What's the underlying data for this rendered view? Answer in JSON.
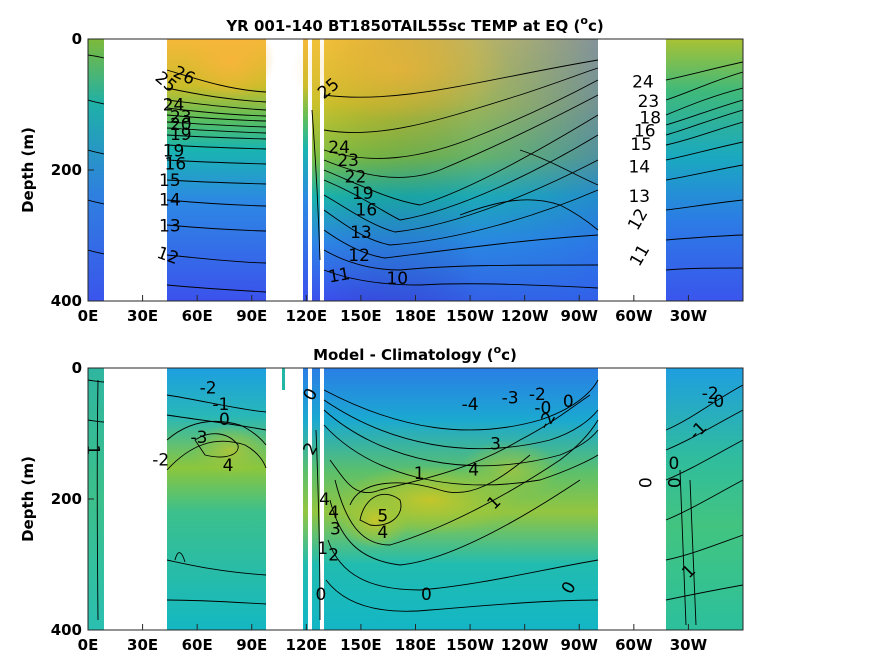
{
  "chart_data": [
    {
      "type": "heatmap",
      "title": "YR 001-140 BT1850TAIL55sc TEMP at EQ (°c)",
      "title_main": "YR 001-140 BT1850TAIL55sc TEMP at EQ (",
      "title_sup": "o",
      "title_end": "c)",
      "xlabel": "",
      "ylabel": "Depth (m)",
      "xticks": [
        "0E",
        "30E",
        "60E",
        "90E",
        "120E",
        "150E",
        "180E",
        "150W",
        "120W",
        "90W",
        "60W",
        "30W"
      ],
      "xtick_values": [
        0,
        30,
        60,
        90,
        120,
        150,
        180,
        210,
        240,
        270,
        300,
        330
      ],
      "yticks": [
        "0",
        "200",
        "400"
      ],
      "ytick_values": [
        0,
        200,
        400
      ],
      "xlim": [
        0,
        360
      ],
      "ylim": [
        400,
        0
      ],
      "land_gaps_lon": [
        [
          8,
          42
        ],
        [
          98,
          118
        ],
        [
          122,
          125
        ],
        [
          270,
          302
        ]
      ],
      "contour_labels": [
        {
          "text": "26",
          "lon": 53,
          "depth": 55,
          "rot": 25
        },
        {
          "text": "25",
          "lon": 43,
          "depth": 65,
          "rot": 40
        },
        {
          "text": "24",
          "lon": 47,
          "depth": 100,
          "rot": 0
        },
        {
          "text": "23",
          "lon": 51,
          "depth": 118,
          "rot": 0
        },
        {
          "text": "20",
          "lon": 51,
          "depth": 130,
          "rot": 0
        },
        {
          "text": "19",
          "lon": 51,
          "depth": 145,
          "rot": 0
        },
        {
          "text": "19",
          "lon": 47,
          "depth": 170,
          "rot": 0
        },
        {
          "text": "16",
          "lon": 48,
          "depth": 190,
          "rot": 0
        },
        {
          "text": "15",
          "lon": 45,
          "depth": 215,
          "rot": 0
        },
        {
          "text": "14",
          "lon": 45,
          "depth": 245,
          "rot": 0
        },
        {
          "text": "13",
          "lon": 45,
          "depth": 285,
          "rot": 0
        },
        {
          "text": "12",
          "lon": 44,
          "depth": 330,
          "rot": 20
        },
        {
          "text": "25",
          "lon": 132,
          "depth": 75,
          "rot": -40
        },
        {
          "text": "24",
          "lon": 138,
          "depth": 165,
          "rot": 0
        },
        {
          "text": "23",
          "lon": 143,
          "depth": 185,
          "rot": 0
        },
        {
          "text": "22",
          "lon": 147,
          "depth": 210,
          "rot": 0
        },
        {
          "text": "19",
          "lon": 151,
          "depth": 235,
          "rot": 0
        },
        {
          "text": "16",
          "lon": 153,
          "depth": 260,
          "rot": 0
        },
        {
          "text": "13",
          "lon": 150,
          "depth": 295,
          "rot": 0
        },
        {
          "text": "12",
          "lon": 149,
          "depth": 330,
          "rot": 0
        },
        {
          "text": "11",
          "lon": 138,
          "depth": 360,
          "rot": -10
        },
        {
          "text": "10",
          "lon": 170,
          "depth": 365,
          "rot": 0
        },
        {
          "text": "24",
          "lon": 305,
          "depth": 65,
          "rot": 0
        },
        {
          "text": "23",
          "lon": 308,
          "depth": 95,
          "rot": 0
        },
        {
          "text": "18",
          "lon": 309,
          "depth": 120,
          "rot": 0
        },
        {
          "text": "16",
          "lon": 306,
          "depth": 140,
          "rot": 0
        },
        {
          "text": "15",
          "lon": 304,
          "depth": 160,
          "rot": 0
        },
        {
          "text": "14",
          "lon": 303,
          "depth": 195,
          "rot": 0
        },
        {
          "text": "13",
          "lon": 303,
          "depth": 240,
          "rot": 0
        },
        {
          "text": "12",
          "lon": 302,
          "depth": 275,
          "rot": -60
        },
        {
          "text": "11",
          "lon": 303,
          "depth": 330,
          "rot": -60
        }
      ]
    },
    {
      "type": "heatmap",
      "title": "Model - Climatology (°c)",
      "title_main": "Model - Climatology (",
      "title_sup": "o",
      "title_end": "c)",
      "xlabel": "",
      "ylabel": "Depth (m)",
      "xticks": [
        "0E",
        "30E",
        "60E",
        "90E",
        "120E",
        "150E",
        "180E",
        "150W",
        "120W",
        "90W",
        "60W",
        "30W"
      ],
      "xtick_values": [
        0,
        30,
        60,
        90,
        120,
        150,
        180,
        210,
        240,
        270,
        300,
        330
      ],
      "yticks": [
        "0",
        "200",
        "400"
      ],
      "ytick_values": [
        0,
        200,
        400
      ],
      "xlim": [
        0,
        360
      ],
      "ylim": [
        400,
        0
      ],
      "land_gaps_lon": [
        [
          8,
          42
        ],
        [
          98,
          118
        ],
        [
          122,
          125
        ],
        [
          270,
          302
        ]
      ],
      "contour_labels": [
        {
          "text": "-2",
          "lon": 66,
          "depth": 30,
          "rot": 0
        },
        {
          "text": "-1",
          "lon": 73,
          "depth": 55,
          "rot": 0
        },
        {
          "text": "0",
          "lon": 75,
          "depth": 78,
          "rot": 0
        },
        {
          "text": "-3",
          "lon": 61,
          "depth": 105,
          "rot": 0
        },
        {
          "text": "-2",
          "lon": 40,
          "depth": 140,
          "rot": 0
        },
        {
          "text": "4",
          "lon": 77,
          "depth": 148,
          "rot": 0
        },
        {
          "text": "1",
          "lon": 3,
          "depth": 125,
          "rot": 90
        },
        {
          "text": "0",
          "lon": 122,
          "depth": 40,
          "rot": -60
        },
        {
          "text": "2",
          "lon": 122,
          "depth": 123,
          "rot": -60
        },
        {
          "text": "4",
          "lon": 130,
          "depth": 200,
          "rot": 0
        },
        {
          "text": "4",
          "lon": 135,
          "depth": 220,
          "rot": 0
        },
        {
          "text": "3",
          "lon": 136,
          "depth": 245,
          "rot": 0
        },
        {
          "text": "1",
          "lon": 129,
          "depth": 275,
          "rot": 0
        },
        {
          "text": "2",
          "lon": 135,
          "depth": 285,
          "rot": 0
        },
        {
          "text": "0",
          "lon": 128,
          "depth": 345,
          "rot": 0
        },
        {
          "text": "5",
          "lon": 162,
          "depth": 225,
          "rot": 0
        },
        {
          "text": "4",
          "lon": 162,
          "depth": 250,
          "rot": 0
        },
        {
          "text": "1",
          "lon": 182,
          "depth": 160,
          "rot": 0
        },
        {
          "text": "4",
          "lon": 212,
          "depth": 155,
          "rot": 0
        },
        {
          "text": "3",
          "lon": 224,
          "depth": 115,
          "rot": 0
        },
        {
          "text": "1",
          "lon": 223,
          "depth": 205,
          "rot": -45
        },
        {
          "text": "-4",
          "lon": 210,
          "depth": 55,
          "rot": 0
        },
        {
          "text": "-3",
          "lon": 232,
          "depth": 45,
          "rot": 0
        },
        {
          "text": "-2",
          "lon": 247,
          "depth": 40,
          "rot": 0
        },
        {
          "text": "-2",
          "lon": 252,
          "depth": 80,
          "rot": -60
        },
        {
          "text": "-0",
          "lon": 250,
          "depth": 60,
          "rot": 0
        },
        {
          "text": "0",
          "lon": 264,
          "depth": 50,
          "rot": 0
        },
        {
          "text": "0",
          "lon": 186,
          "depth": 345,
          "rot": 0
        },
        {
          "text": "0",
          "lon": 264,
          "depth": 335,
          "rot": -60
        },
        {
          "text": "-2",
          "lon": 342,
          "depth": 38,
          "rot": 0
        },
        {
          "text": "-0",
          "lon": 345,
          "depth": 50,
          "rot": 0
        },
        {
          "text": "-1",
          "lon": 335,
          "depth": 95,
          "rot": -45
        },
        {
          "text": "0",
          "lon": 322,
          "depth": 145,
          "rot": 0
        },
        {
          "text": "0",
          "lon": 322,
          "depth": 175,
          "rot": 90
        },
        {
          "text": "0",
          "lon": 306,
          "depth": 175,
          "rot": 90
        },
        {
          "text": "1",
          "lon": 330,
          "depth": 310,
          "rot": -45
        }
      ]
    }
  ]
}
